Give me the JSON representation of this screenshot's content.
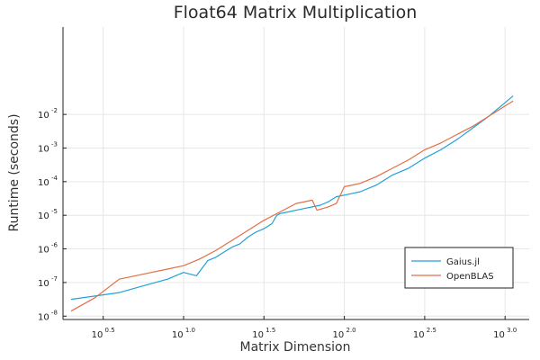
{
  "chart_data": {
    "type": "line",
    "title": "Float64 Matrix Multiplication",
    "xlabel": "Matrix Dimension",
    "ylabel": "Runtime (seconds)",
    "xscale": "log10",
    "yscale": "log10",
    "xlim": [
      0.25,
      3.15
    ],
    "ylim": [
      -8.1,
      0.6
    ],
    "grid": true,
    "legend_position": "bottom-right",
    "x_ticks": [
      {
        "base": "10",
        "exp": "0.5",
        "value": 0.5
      },
      {
        "base": "10",
        "exp": "1.0",
        "value": 1.0
      },
      {
        "base": "10",
        "exp": "1.5",
        "value": 1.5
      },
      {
        "base": "10",
        "exp": "2.0",
        "value": 2.0
      },
      {
        "base": "10",
        "exp": "2.5",
        "value": 2.5
      },
      {
        "base": "10",
        "exp": "3.0",
        "value": 3.0
      }
    ],
    "y_ticks": [
      {
        "base": "10",
        "exp": "-8",
        "value": -8
      },
      {
        "base": "10",
        "exp": "-7",
        "value": -7
      },
      {
        "base": "10",
        "exp": "-6",
        "value": -6
      },
      {
        "base": "10",
        "exp": "-5",
        "value": -5
      },
      {
        "base": "10",
        "exp": "-4",
        "value": -4
      },
      {
        "base": "10",
        "exp": "-3",
        "value": -3
      },
      {
        "base": "10",
        "exp": "-2",
        "value": -2
      }
    ],
    "series": [
      {
        "name": "Gaius.jl",
        "color": "#1fa2d8",
        "log10_x": [
          0.3,
          0.45,
          0.6,
          0.75,
          0.9,
          1.0,
          1.08,
          1.15,
          1.2,
          1.25,
          1.3,
          1.35,
          1.4,
          1.45,
          1.5,
          1.55,
          1.58,
          1.6,
          1.65,
          1.7,
          1.75,
          1.8,
          1.85,
          1.9,
          1.95,
          2.0,
          2.05,
          2.1,
          2.2,
          2.3,
          2.4,
          2.5,
          2.6,
          2.7,
          2.8,
          2.9,
          3.0,
          3.05
        ],
        "log10_y": [
          -7.5,
          -7.4,
          -7.3,
          -7.1,
          -6.9,
          -6.7,
          -6.8,
          -6.35,
          -6.25,
          -6.1,
          -5.95,
          -5.85,
          -5.65,
          -5.5,
          -5.4,
          -5.25,
          -5.0,
          -4.95,
          -4.9,
          -4.85,
          -4.8,
          -4.75,
          -4.7,
          -4.6,
          -4.45,
          -4.4,
          -4.35,
          -4.3,
          -4.1,
          -3.8,
          -3.6,
          -3.3,
          -3.05,
          -2.75,
          -2.4,
          -2.05,
          -1.65,
          -1.45
        ]
      },
      {
        "name": "OpenBLAS",
        "color": "#e26f46",
        "log10_x": [
          0.3,
          0.45,
          0.6,
          0.75,
          0.9,
          1.0,
          1.1,
          1.2,
          1.3,
          1.4,
          1.5,
          1.6,
          1.7,
          1.8,
          1.83,
          1.9,
          1.95,
          2.0,
          2.05,
          2.1,
          2.2,
          2.3,
          2.4,
          2.5,
          2.6,
          2.7,
          2.8,
          2.9,
          3.0,
          3.05
        ],
        "log10_y": [
          -7.85,
          -7.45,
          -6.9,
          -6.75,
          -6.6,
          -6.5,
          -6.3,
          -6.05,
          -5.75,
          -5.45,
          -5.15,
          -4.9,
          -4.65,
          -4.55,
          -4.85,
          -4.75,
          -4.65,
          -4.15,
          -4.1,
          -4.05,
          -3.85,
          -3.6,
          -3.35,
          -3.05,
          -2.85,
          -2.6,
          -2.35,
          -2.05,
          -1.75,
          -1.6
        ]
      }
    ]
  }
}
